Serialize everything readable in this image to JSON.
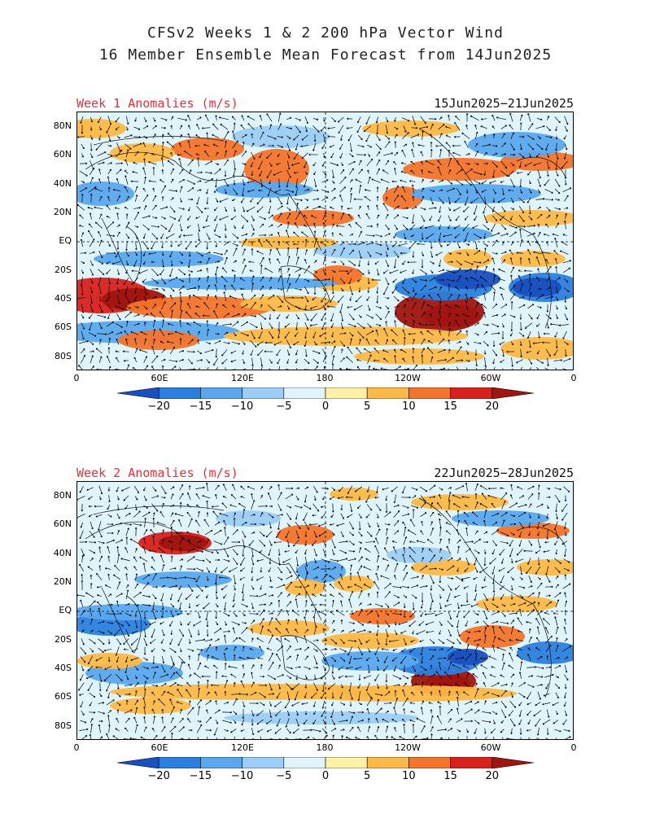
{
  "header": {
    "title_line1": "CFSv2 Weeks 1 & 2 200 hPa Vector Wind",
    "title_line2": "16 Member Ensemble Mean Forecast from 14Jun2025"
  },
  "panels": [
    {
      "title": "Week 1 Anomalies (m/s)",
      "dates": "15Jun2025−21Jun2025"
    },
    {
      "title": "Week 2 Anomalies (m/s)",
      "dates": "22Jun2025−28Jun2025"
    }
  ],
  "lat_labels": [
    "80N",
    "60N",
    "40N",
    "20N",
    "EQ",
    "20S",
    "40S",
    "60S",
    "80S"
  ],
  "lon_labels": [
    "0",
    "60E",
    "120E",
    "180",
    "120W",
    "60W",
    "0"
  ],
  "colorbar": {
    "labels": [
      "−20",
      "−15",
      "−10",
      "−5",
      "0",
      "5",
      "10",
      "15",
      "20"
    ],
    "colors": [
      "#1a4fbf",
      "#2b7fdf",
      "#5aa7ee",
      "#9ccdf6",
      "#dff4fb",
      "#fff2a8",
      "#fdb847",
      "#f4742b",
      "#d8211c",
      "#a0150f"
    ]
  }
}
